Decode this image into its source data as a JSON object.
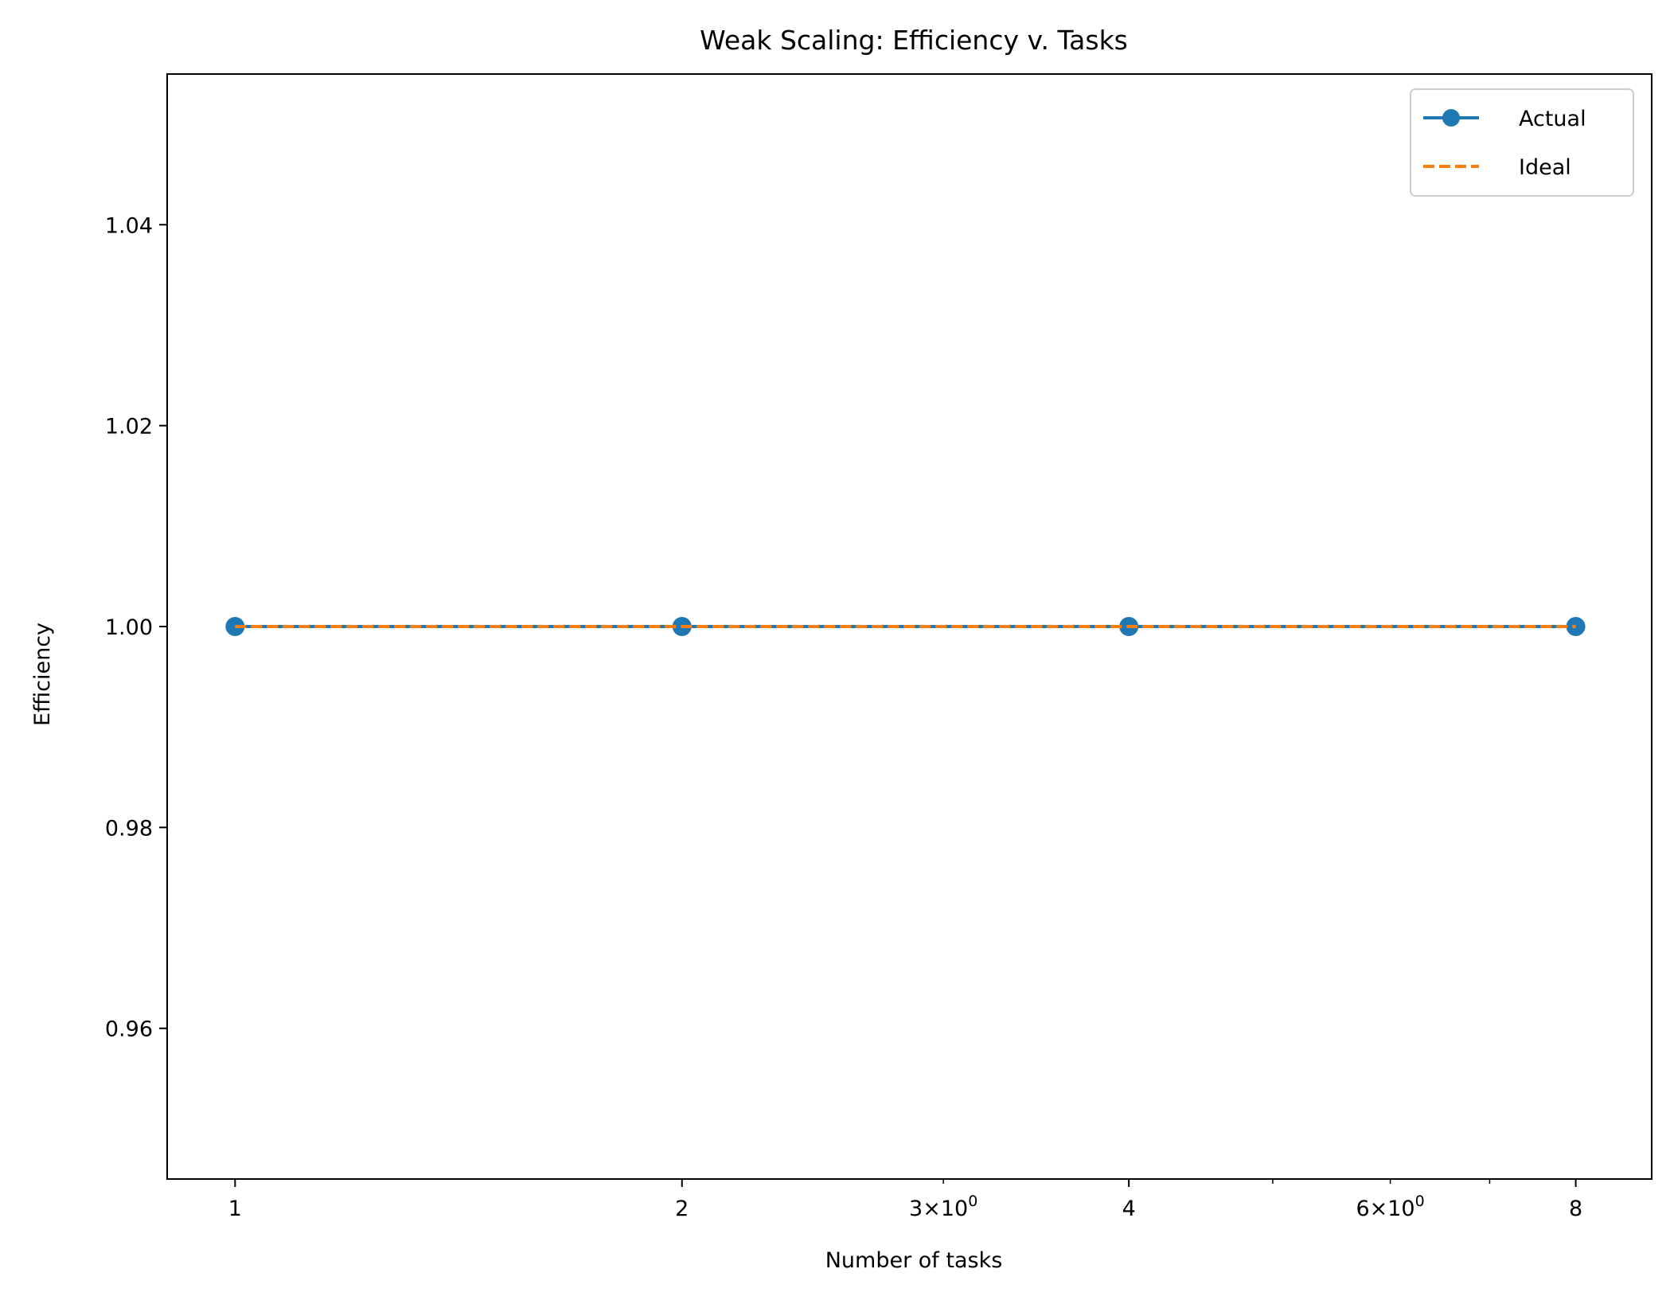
{
  "chart_data": {
    "type": "line",
    "title": "Weak Scaling: Efficiency v. Tasks",
    "xlabel": "Number of tasks",
    "ylabel": "Efficiency",
    "xscale": "log",
    "xlim": [
      0.9,
      9.0
    ],
    "ylim": [
      0.945,
      1.055
    ],
    "grid": false,
    "legend_position": "top-right",
    "x_major_ticks": [
      {
        "value": 1,
        "label": "1"
      },
      {
        "value": 2,
        "label": "2"
      },
      {
        "value": 4,
        "label": "4"
      },
      {
        "value": 8,
        "label": "8"
      }
    ],
    "x_minor_ticks": [
      {
        "value": 3,
        "label_base": "3",
        "label_exp": "0"
      },
      {
        "value": 5,
        "label_base": "",
        "label_exp": ""
      },
      {
        "value": 6,
        "label_base": "6",
        "label_exp": "0"
      },
      {
        "value": 7,
        "label_base": "",
        "label_exp": ""
      }
    ],
    "y_ticks": [
      {
        "value": 0.96,
        "label": "0.96"
      },
      {
        "value": 0.98,
        "label": "0.98"
      },
      {
        "value": 1.0,
        "label": "1.00"
      },
      {
        "value": 1.02,
        "label": "1.02"
      },
      {
        "value": 1.04,
        "label": "1.04"
      }
    ],
    "series": [
      {
        "name": "Actual",
        "x": [
          1,
          2,
          4,
          8
        ],
        "values": [
          1.0,
          1.0,
          1.0,
          1.0
        ],
        "color": "#1f77b4",
        "style": "solid",
        "marker": "circle"
      },
      {
        "name": "Ideal",
        "x": [
          1,
          2,
          4,
          8
        ],
        "values": [
          1.0,
          1.0,
          1.0,
          1.0
        ],
        "color": "#ff7f0e",
        "style": "dashed",
        "marker": "none"
      }
    ]
  }
}
